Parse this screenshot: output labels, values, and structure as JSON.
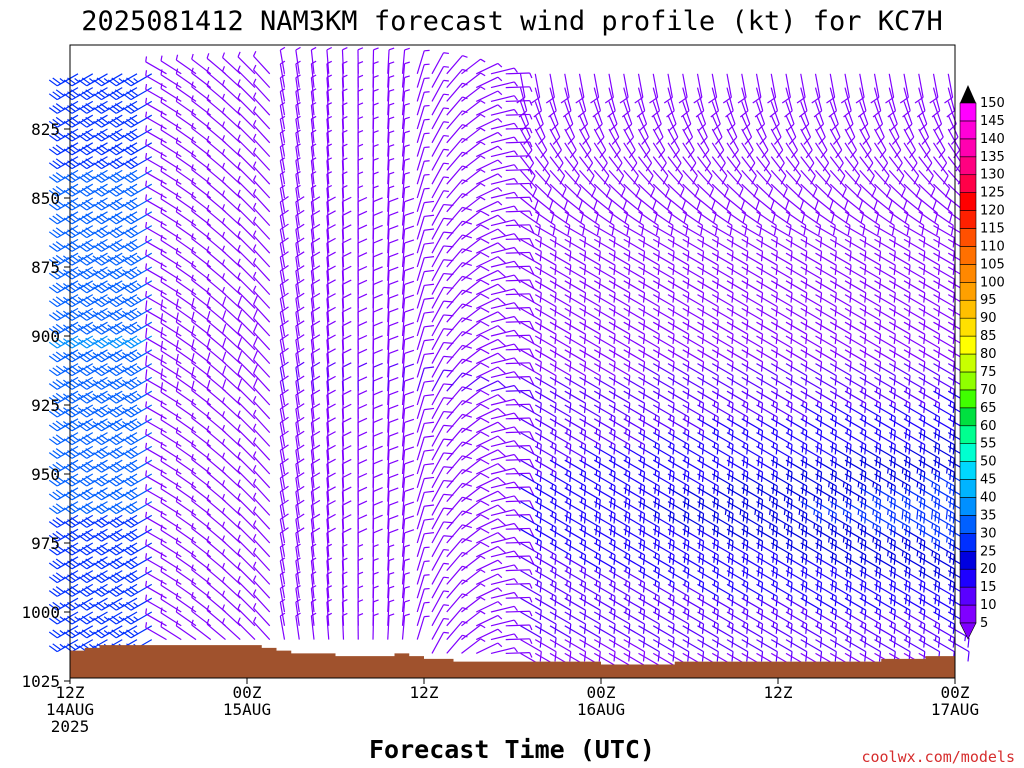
{
  "title": "2025081412 NAM3KM forecast wind profile (kt) for KC7H",
  "credit": "coolwx.com/models",
  "chart_data": {
    "type": "wind-barb-time-height",
    "xlabel": "Forecast Time (UTC)",
    "ylabel": "",
    "x_range_hours": [
      0,
      60
    ],
    "x_ticks": [
      {
        "hour": 0,
        "lines": [
          "12Z",
          "14AUG",
          "2025"
        ]
      },
      {
        "hour": 12,
        "lines": [
          "00Z",
          "15AUG"
        ]
      },
      {
        "hour": 24,
        "lines": [
          "12Z"
        ]
      },
      {
        "hour": 36,
        "lines": [
          "00Z",
          "16AUG"
        ]
      },
      {
        "hour": 48,
        "lines": [
          "12Z"
        ]
      },
      {
        "hour": 60,
        "lines": [
          "00Z",
          "17AUG"
        ]
      }
    ],
    "y_range_hpa": [
      1025,
      800
    ],
    "y_ticks": [
      "825",
      "850",
      "875",
      "900",
      "925",
      "950",
      "975",
      "1000",
      "1025"
    ],
    "pressure_levels": [
      1015,
      1010,
      1005,
      1000,
      995,
      990,
      985,
      980,
      975,
      970,
      965,
      960,
      955,
      950,
      945,
      940,
      935,
      930,
      925,
      920,
      915,
      910,
      905,
      900,
      895,
      890,
      885,
      880,
      875,
      870,
      865,
      860,
      855,
      850,
      845,
      840,
      835,
      830,
      825,
      820,
      815,
      810,
      805
    ],
    "times_hours": [
      0,
      1,
      2,
      3,
      4,
      5,
      6,
      7,
      8,
      9,
      10,
      11,
      12,
      13,
      14,
      15,
      16,
      17,
      18,
      19,
      20,
      21,
      22,
      23,
      24,
      25,
      26,
      27,
      28,
      29,
      30,
      31,
      32,
      33,
      34,
      35,
      36,
      37,
      38,
      39,
      40,
      41,
      42,
      43,
      44,
      45,
      46,
      47,
      48,
      49,
      50,
      51,
      52,
      53,
      54,
      55,
      56,
      57,
      58,
      59
    ],
    "surface_pressure_hpa": [
      1014,
      1013,
      1012,
      1012,
      1012,
      1012,
      1012,
      1012,
      1012,
      1012,
      1012,
      1012,
      1012,
      1013,
      1014,
      1015,
      1015,
      1015,
      1016,
      1016,
      1016,
      1016,
      1015,
      1016,
      1017,
      1017,
      1018,
      1018,
      1018,
      1018,
      1018,
      1018,
      1018,
      1018,
      1018,
      1018,
      1019,
      1019,
      1019,
      1019,
      1019,
      1018,
      1018,
      1018,
      1018,
      1018,
      1018,
      1018,
      1018,
      1018,
      1018,
      1018,
      1018,
      1018,
      1018,
      1017,
      1017,
      1017,
      1016,
      1016
    ],
    "wind_regimes": [
      {
        "hours": [
          0,
          6
        ],
        "direction_from_deg": 240,
        "speed_kt": [
          25,
          35
        ],
        "note": "southwesterly, strongest near 850-950 hPa"
      },
      {
        "hours": [
          6,
          14
        ],
        "direction_from_deg": 300,
        "speed_kt": [
          5,
          12
        ]
      },
      {
        "hours": [
          14,
          30
        ],
        "direction_from_deg": 350,
        "speed_kt": [
          5,
          12
        ]
      },
      {
        "hours": [
          30,
          60
        ],
        "direction_from_deg": 120,
        "speed_kt": [
          8,
          30
        ],
        "note": "southeasterly, strongest 930-990 hPa after hour 48"
      }
    ],
    "colorbar": {
      "values": [
        5,
        10,
        15,
        20,
        25,
        30,
        35,
        40,
        45,
        50,
        55,
        60,
        65,
        70,
        75,
        80,
        85,
        90,
        95,
        100,
        105,
        110,
        115,
        120,
        125,
        130,
        135,
        140,
        145,
        150
      ],
      "colors": [
        "#8000ff",
        "#5a00ff",
        "#1e00ff",
        "#0000e0",
        "#0030ff",
        "#0060ff",
        "#0090ff",
        "#00b4ff",
        "#00d8ff",
        "#00ffd0",
        "#00ff90",
        "#00e040",
        "#40ff00",
        "#90ff00",
        "#c8ff00",
        "#ffff00",
        "#ffe000",
        "#ffc000",
        "#ffa000",
        "#ff8800",
        "#ff7000",
        "#ff5000",
        "#ff2000",
        "#ff0000",
        "#ff0048",
        "#ff0080",
        "#ff00b0",
        "#ff00d8",
        "#ff00ff",
        "#ff00ff"
      ]
    },
    "terrain_color": "#a0522d"
  }
}
